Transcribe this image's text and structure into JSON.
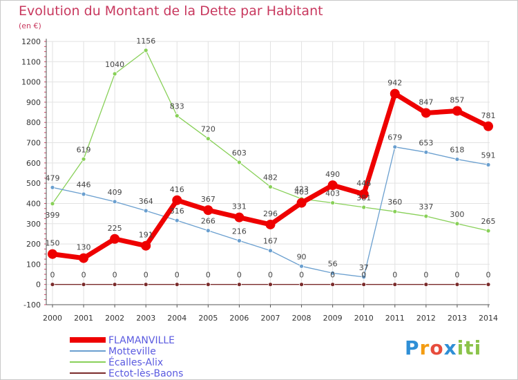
{
  "title": "Evolution du Montant de la Dette par Habitant",
  "subtitle": "(en €)",
  "brand": "Proxiti",
  "colors": {
    "title": "#c8385e",
    "grid": "#e2e2e2",
    "axis": "#555555",
    "brand_p": "#2f8fd6",
    "brand_r": "#f39c12",
    "brand_o": "#e74c3c",
    "brand_x": "#2f8fd6",
    "brand_i": "#8bc34a"
  },
  "chart_data": {
    "type": "line",
    "title": "Evolution du Montant de la Dette par Habitant",
    "ylabel": "(en €)",
    "xlabel": "",
    "x": [
      "2000",
      "2001",
      "2002",
      "2003",
      "2004",
      "2005",
      "2006",
      "2007",
      "2008",
      "2009",
      "2010",
      "2011",
      "2012",
      "2013",
      "2014"
    ],
    "yticks": [
      -100,
      0,
      100,
      200,
      300,
      400,
      500,
      600,
      700,
      800,
      900,
      1000,
      1100,
      1200
    ],
    "ylim": [
      -100,
      1200
    ],
    "grid": true,
    "legend": "bottom-left",
    "series": [
      {
        "name": "FLAMANVILLE",
        "color": "#ee0000",
        "width": 7,
        "marker": 7,
        "values": [
          150,
          130,
          225,
          191,
          416,
          367,
          331,
          296,
          403,
          490,
          446,
          942,
          847,
          857,
          781
        ]
      },
      {
        "name": "Motteville",
        "color": "#6a9fcf",
        "width": 1.3,
        "marker": 3,
        "values": [
          479,
          446,
          409,
          364,
          316,
          266,
          216,
          167,
          90,
          56,
          37,
          679,
          653,
          618,
          591
        ]
      },
      {
        "name": "Écalles-Alix",
        "color": "#88d058",
        "width": 1.3,
        "marker": 3,
        "values": [
          399,
          619,
          1040,
          1156,
          833,
          720,
          603,
          482,
          423,
          403,
          381,
          360,
          337,
          300,
          265
        ]
      },
      {
        "name": "Ectot-lès-Baons",
        "color": "#7a2a2a",
        "width": 1.3,
        "marker": 3,
        "values": [
          0,
          0,
          0,
          0,
          0,
          0,
          0,
          0,
          0,
          0,
          0,
          0,
          0,
          0,
          0
        ]
      }
    ]
  }
}
